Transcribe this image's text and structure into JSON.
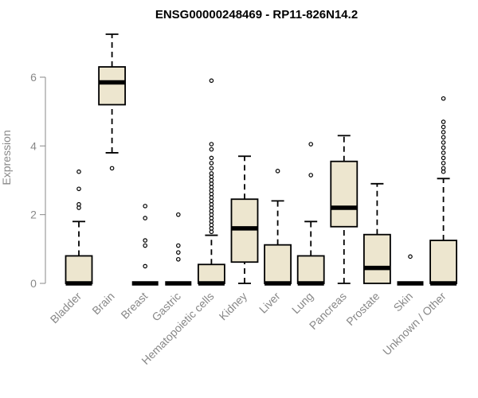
{
  "chart_data": {
    "type": "box",
    "title": "ENSG00000248469 - RP11-826N14.2",
    "xlabel": "",
    "ylabel": "Expression",
    "ylim": [
      0,
      7.3
    ],
    "yticks": [
      0,
      2,
      4,
      6
    ],
    "grid": false,
    "box_fill": "#ede6cf",
    "box_stroke": "#000000",
    "categories": [
      "Bladder",
      "Brain",
      "Breast",
      "Gastric",
      "Hematopoietic cells",
      "Kidney",
      "Liver",
      "Lung",
      "Pancreas",
      "Prostate",
      "Skin",
      "Unknown / Other"
    ],
    "boxes": [
      {
        "whisker_low": 0,
        "q1": 0,
        "median": 0,
        "q3": 0.8,
        "whisker_high": 1.8,
        "outliers": [
          2.2,
          2.3,
          2.75,
          3.25
        ]
      },
      {
        "whisker_low": 3.8,
        "q1": 5.2,
        "median": 5.85,
        "q3": 6.3,
        "whisker_high": 7.25,
        "outliers": [
          3.35
        ]
      },
      {
        "whisker_low": 0,
        "q1": 0,
        "median": 0,
        "q3": 0,
        "whisker_high": 0,
        "outliers": [
          0.5,
          1.1,
          1.25,
          1.9,
          2.25
        ]
      },
      {
        "whisker_low": 0,
        "q1": 0,
        "median": 0,
        "q3": 0,
        "whisker_high": 0,
        "outliers": [
          0.7,
          0.9,
          1.1,
          2.0
        ]
      },
      {
        "whisker_low": 0,
        "q1": 0,
        "median": 0,
        "q3": 0.55,
        "whisker_high": 1.4,
        "outliers": [
          1.5,
          1.6,
          1.7,
          1.8,
          1.9,
          2.0,
          2.1,
          2.2,
          2.3,
          2.4,
          2.5,
          2.6,
          2.7,
          2.8,
          2.9,
          3.0,
          3.1,
          3.2,
          3.35,
          3.5,
          3.65,
          3.9,
          4.05,
          5.9
        ]
      },
      {
        "whisker_low": 0,
        "q1": 0.62,
        "median": 1.6,
        "q3": 2.45,
        "whisker_high": 3.7,
        "outliers": []
      },
      {
        "whisker_low": 0,
        "q1": 0,
        "median": 0,
        "q3": 1.12,
        "whisker_high": 2.4,
        "outliers": [
          3.27
        ]
      },
      {
        "whisker_low": 0,
        "q1": 0,
        "median": 0,
        "q3": 0.8,
        "whisker_high": 1.8,
        "outliers": [
          3.15,
          4.05
        ]
      },
      {
        "whisker_low": 0,
        "q1": 1.65,
        "median": 2.2,
        "q3": 3.55,
        "whisker_high": 4.3,
        "outliers": []
      },
      {
        "whisker_low": 0,
        "q1": 0,
        "median": 0.45,
        "q3": 1.42,
        "whisker_high": 2.9,
        "outliers": []
      },
      {
        "whisker_low": 0,
        "q1": 0,
        "median": 0,
        "q3": 0,
        "whisker_high": 0,
        "outliers": [
          0.78
        ]
      },
      {
        "whisker_low": 0,
        "q1": 0,
        "median": 0,
        "q3": 1.25,
        "whisker_high": 3.05,
        "outliers": [
          3.25,
          3.35,
          3.5,
          3.65,
          3.8,
          3.95,
          4.1,
          4.25,
          4.4,
          4.55,
          4.7,
          5.38
        ]
      }
    ]
  }
}
